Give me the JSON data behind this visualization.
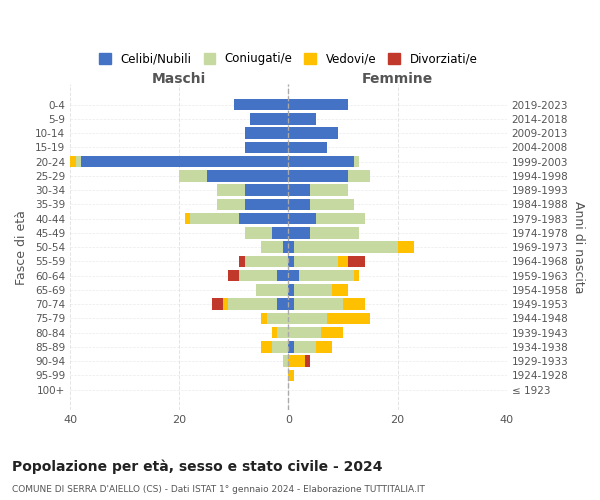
{
  "age_groups": [
    "100+",
    "95-99",
    "90-94",
    "85-89",
    "80-84",
    "75-79",
    "70-74",
    "65-69",
    "60-64",
    "55-59",
    "50-54",
    "45-49",
    "40-44",
    "35-39",
    "30-34",
    "25-29",
    "20-24",
    "15-19",
    "10-14",
    "5-9",
    "0-4"
  ],
  "birth_years": [
    "≤ 1923",
    "1924-1928",
    "1929-1933",
    "1934-1938",
    "1939-1943",
    "1944-1948",
    "1949-1953",
    "1954-1958",
    "1959-1963",
    "1964-1968",
    "1969-1973",
    "1974-1978",
    "1979-1983",
    "1984-1988",
    "1989-1993",
    "1994-1998",
    "1999-2003",
    "2004-2008",
    "2009-2013",
    "2014-2018",
    "2019-2023"
  ],
  "male": {
    "celibi": [
      0,
      0,
      0,
      0,
      0,
      0,
      2,
      0,
      2,
      0,
      1,
      3,
      9,
      8,
      8,
      15,
      38,
      8,
      8,
      7,
      10
    ],
    "coniugati": [
      0,
      0,
      1,
      3,
      2,
      4,
      9,
      6,
      7,
      8,
      4,
      5,
      9,
      5,
      5,
      5,
      1,
      0,
      0,
      0,
      0
    ],
    "vedovi": [
      0,
      0,
      0,
      2,
      1,
      1,
      1,
      0,
      0,
      0,
      0,
      0,
      1,
      0,
      0,
      0,
      1,
      0,
      0,
      0,
      0
    ],
    "divorziati": [
      0,
      0,
      0,
      0,
      0,
      0,
      2,
      0,
      2,
      1,
      0,
      0,
      0,
      0,
      0,
      0,
      0,
      0,
      0,
      0,
      0
    ]
  },
  "female": {
    "nubili": [
      0,
      0,
      0,
      1,
      0,
      0,
      1,
      1,
      2,
      1,
      1,
      4,
      5,
      4,
      4,
      11,
      12,
      7,
      9,
      5,
      11
    ],
    "coniugate": [
      0,
      0,
      0,
      4,
      6,
      7,
      9,
      7,
      10,
      8,
      19,
      9,
      9,
      8,
      7,
      4,
      1,
      0,
      0,
      0,
      0
    ],
    "vedove": [
      0,
      1,
      3,
      3,
      4,
      8,
      4,
      3,
      1,
      2,
      3,
      0,
      0,
      0,
      0,
      0,
      0,
      0,
      0,
      0,
      0
    ],
    "divorziate": [
      0,
      0,
      1,
      0,
      0,
      0,
      0,
      0,
      0,
      3,
      0,
      0,
      0,
      0,
      0,
      0,
      0,
      0,
      0,
      0,
      0
    ]
  },
  "colors": {
    "celibi_nubili": "#4472c4",
    "coniugati": "#c5d9a0",
    "vedovi": "#ffc000",
    "divorziati": "#c0392b"
  },
  "title": "Popolazione per età, sesso e stato civile - 2024",
  "subtitle": "COMUNE DI SERRA D'AIELLO (CS) - Dati ISTAT 1° gennaio 2024 - Elaborazione TUTTITALIA.IT",
  "xlabel_left": "Maschi",
  "xlabel_right": "Femmine",
  "ylabel_left": "Fasce di età",
  "ylabel_right": "Anni di nascita",
  "xlim": 40,
  "legend_labels": [
    "Celibi/Nubili",
    "Coniugati/e",
    "Vedovi/e",
    "Divorziati/e"
  ],
  "background_color": "#ffffff",
  "grid_color": "#dddddd"
}
